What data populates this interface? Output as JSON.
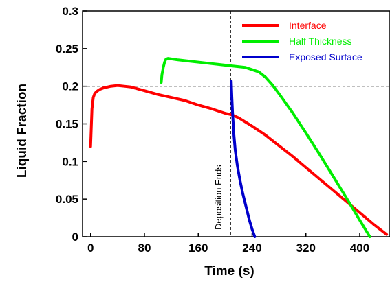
{
  "chart_data": {
    "type": "line",
    "xlabel": "Time (s)",
    "ylabel": "Liquid Fraction",
    "xlim": [
      -12,
      445
    ],
    "ylim": [
      0,
      0.3
    ],
    "xticks": [
      0,
      80,
      160,
      240,
      320,
      400
    ],
    "yticks": [
      0,
      0.05,
      0.1,
      0.15,
      0.2,
      0.25,
      0.3
    ],
    "yticklabels": [
      "0",
      "0.05",
      "0.1",
      "0.15",
      "0.2",
      "0.25",
      "0.3"
    ],
    "grid": false,
    "legend_position": "top-right",
    "series": [
      {
        "name": "Interface",
        "color": "#ff0000",
        "x": [
          0,
          1,
          2,
          4,
          6,
          9,
          14,
          20,
          30,
          40,
          50,
          60,
          80,
          100,
          120,
          140,
          160,
          180,
          200,
          210,
          220,
          240,
          260,
          280,
          300,
          320,
          340,
          360,
          380,
          400,
          420,
          440
        ],
        "y": [
          0.12,
          0.145,
          0.17,
          0.185,
          0.19,
          0.193,
          0.196,
          0.198,
          0.2,
          0.201,
          0.2,
          0.199,
          0.194,
          0.189,
          0.185,
          0.181,
          0.175,
          0.17,
          0.164,
          0.162,
          0.158,
          0.147,
          0.135,
          0.121,
          0.107,
          0.092,
          0.077,
          0.062,
          0.047,
          0.032,
          0.017,
          0.003
        ]
      },
      {
        "name": "Half Thickness",
        "color": "#00ee00",
        "x": [
          105,
          106,
          108,
          110,
          112,
          115,
          130,
          150,
          170,
          190,
          210,
          230,
          250,
          260,
          270,
          280,
          300,
          320,
          340,
          360,
          380,
          400,
          415
        ],
        "y": [
          0.205,
          0.215,
          0.225,
          0.232,
          0.236,
          0.237,
          0.235,
          0.233,
          0.231,
          0.229,
          0.227,
          0.225,
          0.219,
          0.212,
          0.202,
          0.19,
          0.165,
          0.138,
          0.11,
          0.081,
          0.052,
          0.022,
          0
        ]
      },
      {
        "name": "Exposed Surface",
        "color": "#0000cc",
        "x": [
          209,
          210,
          211,
          212,
          213,
          215,
          218,
          222,
          226,
          231,
          236,
          240,
          244
        ],
        "y": [
          0.207,
          0.185,
          0.165,
          0.15,
          0.135,
          0.115,
          0.095,
          0.075,
          0.058,
          0.04,
          0.022,
          0.01,
          0
        ]
      }
    ],
    "reference_lines": {
      "horizontal_y": 0.2,
      "vertical_x": 208
    },
    "annotation": "Deposition Ends"
  }
}
